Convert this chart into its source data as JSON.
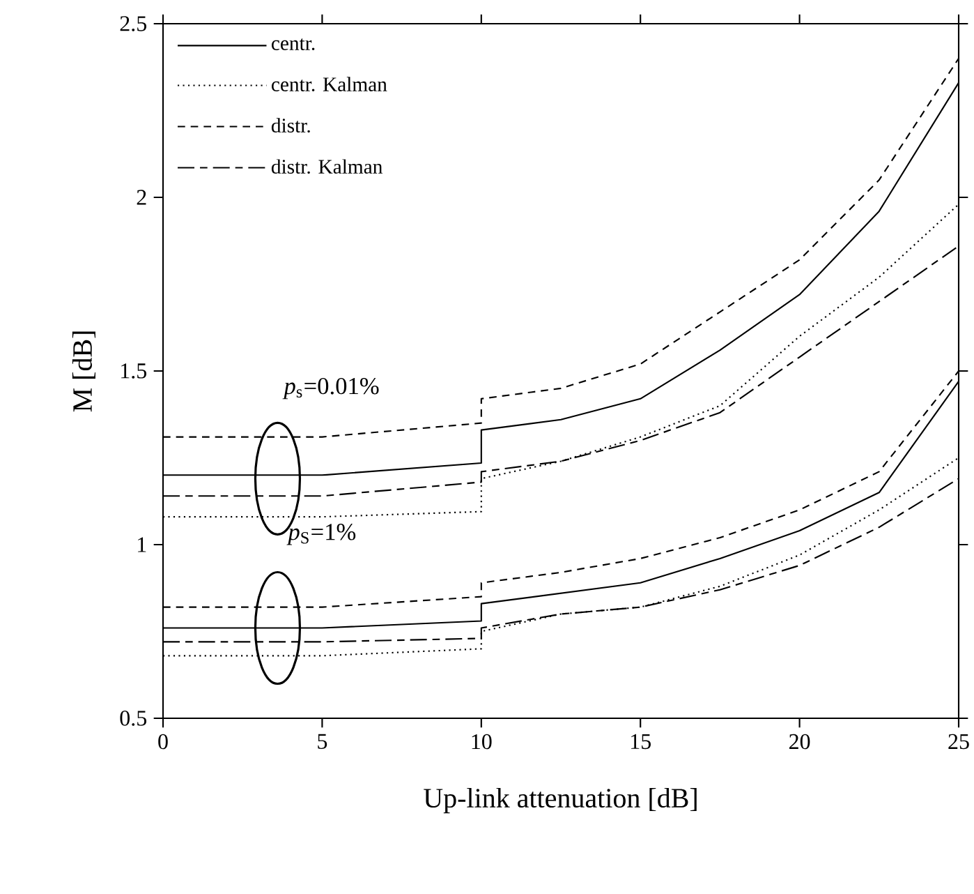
{
  "chart_data": {
    "type": "line",
    "xlabel": "Up-link attenuation [dB]",
    "ylabel": "M [dB]",
    "xlim": [
      0,
      25
    ],
    "ylim": [
      0.5,
      2.5
    ],
    "xticks": [
      0,
      5,
      10,
      15,
      20,
      25
    ],
    "yticks": [
      0.5,
      1,
      1.5,
      2,
      2.5
    ],
    "grid": false,
    "legend": "top left",
    "marker": "none",
    "annotations": [
      "*p*$_{s}$=0.01%",
      "*p*$_{S}$=1%"
    ],
    "series": [
      {
        "name": "centr.",
        "color": "#000000",
        "line_style": "solid",
        "x": [
          0,
          5,
          10,
          10,
          12.5,
          15,
          17.5,
          20,
          22.5,
          25
        ],
        "values": [
          1.2,
          1.2,
          1.235,
          1.33,
          1.36,
          1.42,
          1.56,
          1.72,
          1.96,
          2.33
        ]
      },
      {
        "name": "centr. Kalman",
        "color": "#000000",
        "line_style": "dotted",
        "x": [
          0,
          5,
          10,
          10,
          12.5,
          15,
          17.5,
          20,
          22.5,
          25
        ],
        "values": [
          1.08,
          1.08,
          1.095,
          1.19,
          1.24,
          1.31,
          1.4,
          1.6,
          1.77,
          1.98
        ]
      },
      {
        "name": "distr.",
        "color": "#000000",
        "line_style": "dashed",
        "x": [
          0,
          5,
          10,
          10,
          12.5,
          15,
          17.5,
          20,
          22.5,
          25
        ],
        "values": [
          1.31,
          1.31,
          1.35,
          1.42,
          1.45,
          1.52,
          1.67,
          1.82,
          2.05,
          2.4
        ]
      },
      {
        "name": "distr. Kalman",
        "color": "#000000",
        "line_style": "dashdot",
        "x": [
          0,
          5,
          10,
          10,
          12.5,
          15,
          17.5,
          20,
          22.5,
          25
        ],
        "values": [
          1.14,
          1.14,
          1.18,
          1.21,
          1.24,
          1.3,
          1.38,
          1.54,
          1.7,
          1.86
        ]
      },
      {
        "color": "#000000",
        "line_style": "solid",
        "x": [
          0,
          5,
          10,
          10,
          12.5,
          15,
          17.5,
          20,
          22.5,
          25
        ],
        "values": [
          0.76,
          0.76,
          0.78,
          0.83,
          0.86,
          0.89,
          0.96,
          1.04,
          1.15,
          1.47
        ]
      },
      {
        "color": "#000000",
        "line_style": "dotted",
        "x": [
          0,
          5,
          10,
          10,
          12.5,
          15,
          17.5,
          20,
          22.5,
          25
        ],
        "values": [
          0.68,
          0.68,
          0.7,
          0.75,
          0.8,
          0.82,
          0.88,
          0.97,
          1.1,
          1.25
        ]
      },
      {
        "color": "#000000",
        "line_style": "dashed",
        "x": [
          0,
          5,
          10,
          10,
          12.5,
          15,
          17.5,
          20,
          22.5,
          25
        ],
        "values": [
          0.82,
          0.82,
          0.85,
          0.89,
          0.92,
          0.96,
          1.02,
          1.1,
          1.21,
          1.5
        ]
      },
      {
        "color": "#000000",
        "line_style": "dashdot",
        "x": [
          0,
          5,
          10,
          10,
          12.5,
          15,
          17.5,
          20,
          22.5,
          25
        ],
        "values": [
          0.72,
          0.72,
          0.73,
          0.76,
          0.8,
          0.82,
          0.87,
          0.94,
          1.05,
          1.19
        ]
      }
    ]
  }
}
